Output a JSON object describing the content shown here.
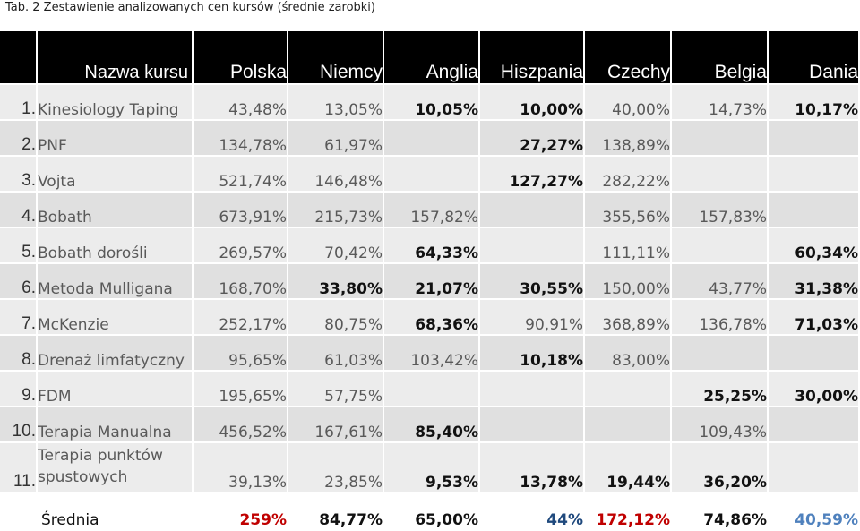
{
  "caption": "Tab. 2  Zestawienie analizowanych cen kursów (średnie zarobki)",
  "header": [
    "Nazwa kursu",
    "Polska",
    "Niemcy",
    "Anglia",
    "Hiszpania",
    "Czechy",
    "Belgia",
    "Dania"
  ],
  "rows": [
    {
      "num": "1.",
      "name": "Kinesiology Taping",
      "v": [
        "43,48%",
        "13,05%",
        "10,05%",
        "10,00%",
        "40,00%",
        "14,73%",
        "10,17%"
      ]
    },
    {
      "num": "2.",
      "name": "PNF",
      "v": [
        "134,78%",
        "61,97%",
        "",
        "27,27%",
        "138,89%",
        "",
        ""
      ]
    },
    {
      "num": "3.",
      "name": "Vojta",
      "v": [
        "521,74%",
        "146,48%",
        "",
        "127,27%",
        "282,22%",
        "",
        ""
      ]
    },
    {
      "num": "4.",
      "name": "Bobath",
      "v": [
        "673,91%",
        "215,73%",
        "157,82%",
        "",
        "355,56%",
        "157,83%",
        ""
      ]
    },
    {
      "num": "5.",
      "name": "Bobath dorośli",
      "v": [
        "269,57%",
        "70,42%",
        "64,33%",
        "",
        "111,11%",
        "",
        "60,34%"
      ]
    },
    {
      "num": "6.",
      "name": "Metoda Mulligana",
      "v": [
        "168,70%",
        "33,80%",
        "21,07%",
        "30,55%",
        "150,00%",
        "43,77%",
        "31,38%"
      ]
    },
    {
      "num": "7.",
      "name": "McKenzie",
      "v": [
        "252,17%",
        "80,75%",
        "68,36%",
        "90,91%",
        "368,89%",
        "136,78%",
        "71,03%"
      ]
    },
    {
      "num": "8.",
      "name": "Drenaż limfatyczny",
      "v": [
        "95,65%",
        "61,03%",
        "103,42%",
        "10,18%",
        "83,00%",
        "",
        ""
      ]
    },
    {
      "num": "9.",
      "name": "FDM",
      "v": [
        "195,65%",
        "57,75%",
        "",
        "",
        "",
        "25,25%",
        "30,00%"
      ]
    },
    {
      "num": "10.",
      "name": "Terapia Manualna",
      "v": [
        "456,52%",
        "167,61%",
        "85,40%",
        "",
        "",
        "109,43%",
        ""
      ]
    },
    {
      "num": "11.",
      "name": "Terapia punktów spustowych",
      "v": [
        "39,13%",
        "23,85%",
        "9,53%",
        "13,78%",
        "19,44%",
        "36,20%",
        ""
      ]
    }
  ],
  "average": {
    "label": "Średnia",
    "v": [
      "259%",
      "84,77%",
      "65,00%",
      "44%",
      "172,12%",
      "74,86%",
      "40,59%"
    ]
  },
  "colors": {
    "header_bg": "#000000",
    "red": "#c00000",
    "blue": "#4f81bd",
    "dark_blue": "#1f497d"
  }
}
